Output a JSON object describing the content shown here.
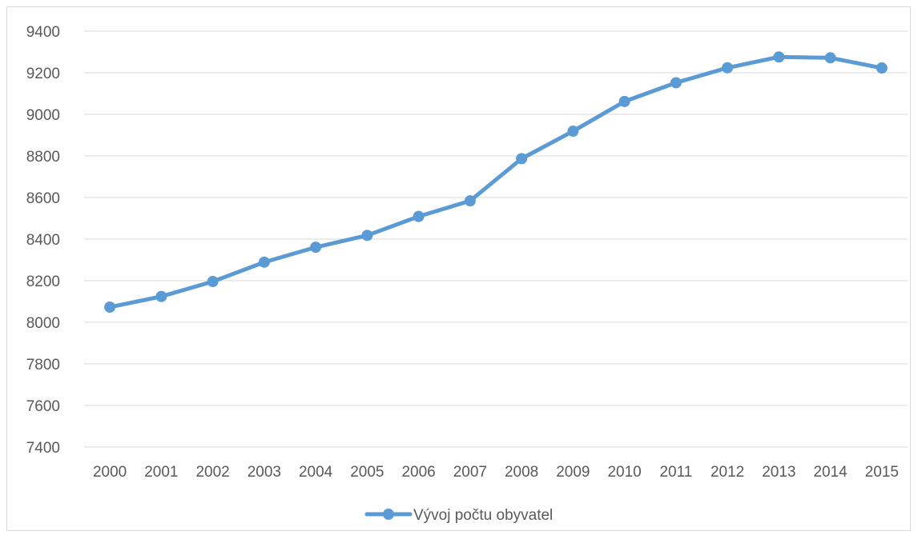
{
  "chart_data": {
    "type": "line",
    "title": "",
    "xlabel": "",
    "ylabel": "",
    "categories": [
      "2000",
      "2001",
      "2002",
      "2003",
      "2004",
      "2005",
      "2006",
      "2007",
      "2008",
      "2009",
      "2010",
      "2011",
      "2012",
      "2013",
      "2014",
      "2015"
    ],
    "series": [
      {
        "name": "Vývoj počtu obyvatel",
        "values": [
          8073,
          8124,
          8196,
          8289,
          8361,
          8418,
          8509,
          8584,
          8787,
          8919,
          9062,
          9152,
          9224,
          9276,
          9272,
          9223
        ],
        "color": "#5b9bd5"
      }
    ],
    "ylim": [
      7400,
      9400
    ],
    "yticks": [
      "7400",
      "7600",
      "7800",
      "8000",
      "8200",
      "8400",
      "8600",
      "8800",
      "9000",
      "9200",
      "9400"
    ],
    "grid": true,
    "legend_position": "bottom"
  }
}
